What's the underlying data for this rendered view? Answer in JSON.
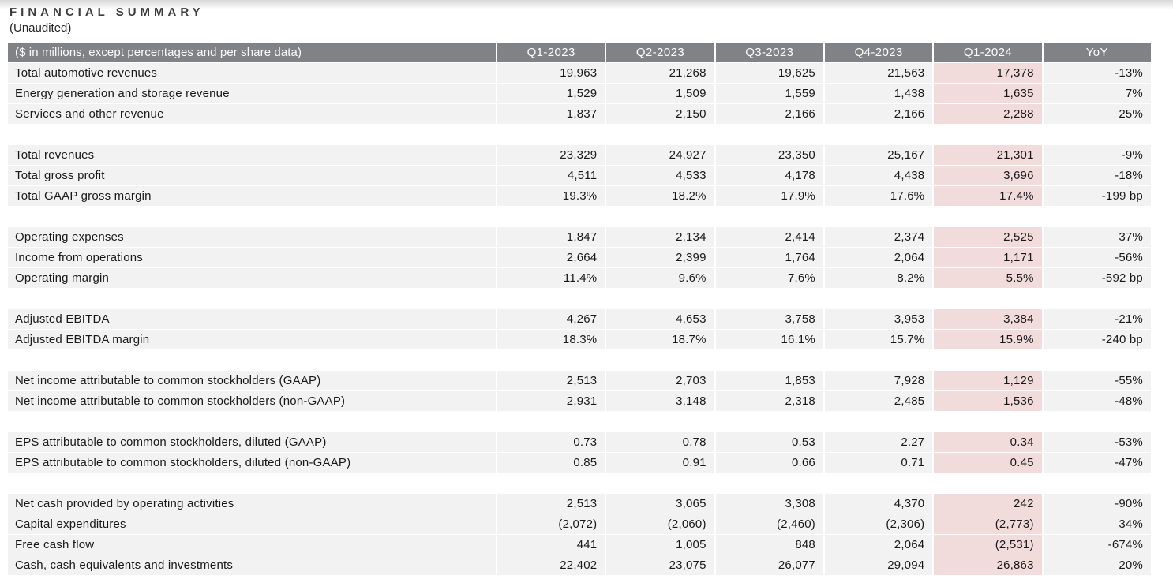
{
  "title": "FINANCIAL SUMMARY",
  "subtitle": "(Unaudited)",
  "table": {
    "header": [
      "($ in millions, except percentages and per share data)",
      "Q1-2023",
      "Q2-2023",
      "Q3-2023",
      "Q4-2023",
      "Q1-2024",
      "YoY"
    ],
    "highlight_column": "Q1-2024",
    "colors": {
      "header_bg": "#808285",
      "header_text": "#fdfdfd",
      "row_bg": "#f2f2f2",
      "highlight_bg": "#f2dcdb",
      "text": "#19191b"
    },
    "sections": [
      {
        "rows": [
          {
            "label": "Total automotive revenues",
            "values": [
              "19,963",
              "21,268",
              "19,625",
              "21,563",
              "17,378"
            ],
            "yoy": "-13%"
          },
          {
            "label": "Energy generation and storage revenue",
            "values": [
              "1,529",
              "1,509",
              "1,559",
              "1,438",
              "1,635"
            ],
            "yoy": "7%"
          },
          {
            "label": "Services and other revenue",
            "values": [
              "1,837",
              "2,150",
              "2,166",
              "2,166",
              "2,288"
            ],
            "yoy": "25%"
          }
        ]
      },
      {
        "rows": [
          {
            "label": "Total revenues",
            "values": [
              "23,329",
              "24,927",
              "23,350",
              "25,167",
              "21,301"
            ],
            "yoy": "-9%"
          },
          {
            "label": "Total gross profit",
            "values": [
              "4,511",
              "4,533",
              "4,178",
              "4,438",
              "3,696"
            ],
            "yoy": "-18%"
          },
          {
            "label": "Total GAAP gross margin",
            "values": [
              "19.3%",
              "18.2%",
              "17.9%",
              "17.6%",
              "17.4%"
            ],
            "yoy": "-199 bp"
          }
        ]
      },
      {
        "rows": [
          {
            "label": "Operating expenses",
            "values": [
              "1,847",
              "2,134",
              "2,414",
              "2,374",
              "2,525"
            ],
            "yoy": "37%"
          },
          {
            "label": "Income from operations",
            "values": [
              "2,664",
              "2,399",
              "1,764",
              "2,064",
              "1,171"
            ],
            "yoy": "-56%"
          },
          {
            "label": "Operating margin",
            "values": [
              "11.4%",
              "9.6%",
              "7.6%",
              "8.2%",
              "5.5%"
            ],
            "yoy": "-592 bp"
          }
        ]
      },
      {
        "rows": [
          {
            "label": "Adjusted EBITDA",
            "values": [
              "4,267",
              "4,653",
              "3,758",
              "3,953",
              "3,384"
            ],
            "yoy": "-21%"
          },
          {
            "label": "Adjusted EBITDA margin",
            "values": [
              "18.3%",
              "18.7%",
              "16.1%",
              "15.7%",
              "15.9%"
            ],
            "yoy": "-240 bp"
          }
        ]
      },
      {
        "rows": [
          {
            "label": "Net income attributable to common stockholders (GAAP)",
            "values": [
              "2,513",
              "2,703",
              "1,853",
              "7,928",
              "1,129"
            ],
            "yoy": "-55%"
          },
          {
            "label": "Net income attributable to common stockholders (non-GAAP)",
            "values": [
              "2,931",
              "3,148",
              "2,318",
              "2,485",
              "1,536"
            ],
            "yoy": "-48%"
          }
        ]
      },
      {
        "rows": [
          {
            "label": "EPS attributable to common stockholders, diluted (GAAP)",
            "values": [
              "0.73",
              "0.78",
              "0.53",
              "2.27",
              "0.34"
            ],
            "yoy": "-53%"
          },
          {
            "label": "EPS attributable to common stockholders, diluted (non-GAAP)",
            "values": [
              "0.85",
              "0.91",
              "0.66",
              "0.71",
              "0.45"
            ],
            "yoy": "-47%"
          }
        ]
      },
      {
        "rows": [
          {
            "label": "Net cash provided by operating activities",
            "values": [
              "2,513",
              "3,065",
              "3,308",
              "4,370",
              "242"
            ],
            "yoy": "-90%"
          },
          {
            "label": "Capital expenditures",
            "values": [
              "(2,072)",
              "(2,060)",
              "(2,460)",
              "(2,306)",
              "(2,773)"
            ],
            "yoy": "34%"
          },
          {
            "label": "Free cash flow",
            "values": [
              "441",
              "1,005",
              "848",
              "2,064",
              "(2,531)"
            ],
            "yoy": "-674%"
          },
          {
            "label": "Cash, cash equivalents and investments",
            "values": [
              "22,402",
              "23,075",
              "26,077",
              "29,094",
              "26,863"
            ],
            "yoy": "20%"
          }
        ]
      }
    ]
  }
}
